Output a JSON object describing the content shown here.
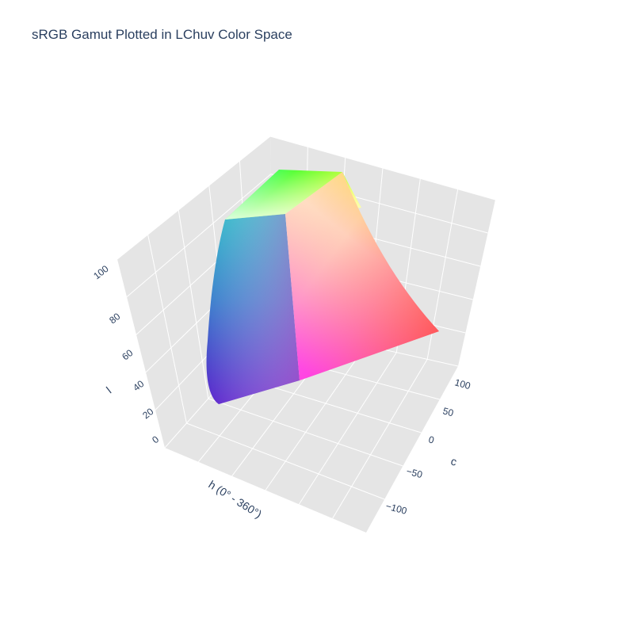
{
  "chart_data": {
    "type": "surface3d",
    "title": "sRGB Gamut Plotted in LChuv Color Space",
    "axes": {
      "l": {
        "label": "l",
        "ticks": [
          "0",
          "20",
          "40",
          "60",
          "80",
          "100"
        ],
        "range": [
          0,
          100
        ]
      },
      "c": {
        "label": "c",
        "ticks": [
          "100",
          "50",
          "0",
          "−50",
          "−100"
        ],
        "range": [
          -125,
          125
        ]
      },
      "h": {
        "label": "h (0° - 360°)",
        "ticks": []
      }
    },
    "background": "#e5e5e5",
    "grid": true,
    "surface_corners": {
      "top_green": "#44ff44",
      "top_yellow": "#ffff22",
      "cyan": "#22ffcc",
      "white": "#ffffff",
      "red": "#ff0022",
      "magenta": "#ff22ee",
      "blue_purple": "#5522cc",
      "teal": "#22bbcc"
    }
  }
}
